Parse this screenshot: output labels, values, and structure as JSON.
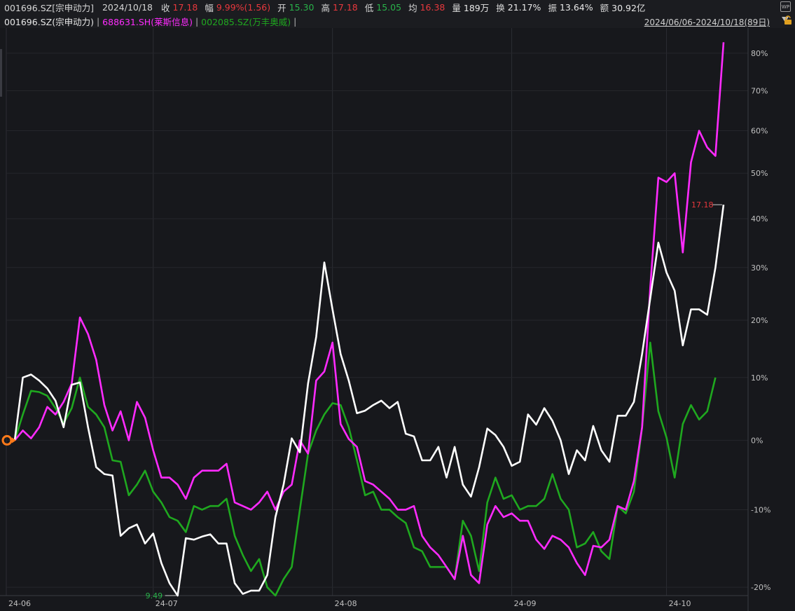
{
  "quote": {
    "code": "001696.SZ[宗申动力]",
    "date": "2024/10/18",
    "close_label": "收",
    "close_value": "17.18",
    "change_label": "幅",
    "change_value": "9.99%(1.56)",
    "open_label": "开",
    "open_value": "15.30",
    "high_label": "高",
    "high_value": "17.18",
    "low_label": "低",
    "low_value": "15.05",
    "avg_label": "均",
    "avg_value": "16.38",
    "volume_label": "量",
    "volume_value": "189万",
    "turnover_label": "换",
    "turnover_value": "21.17%",
    "amplitude_label": "振",
    "amplitude_value": "13.64%",
    "amount_label": "额",
    "amount_value": "30.92亿"
  },
  "compare": {
    "main": "001696.SZ(宗申动力)",
    "second": "688631.SH(莱斯信息)",
    "third": "002085.SZ(万丰奥威)",
    "separator": "|"
  },
  "range": "2024/06/06-2024/10/18(89日)",
  "colors": {
    "background": "#17181c",
    "main_series": "#ffffff",
    "second_series": "#ff2bff",
    "third_series": "#1fa81f",
    "up": "#e8383d",
    "down": "#29b34a"
  },
  "chart_data": {
    "type": "line",
    "x_tick_labels": [
      "24-06",
      "24-07",
      "24-08",
      "24-09",
      "24-10"
    ],
    "x_tick_index": [
      0,
      17,
      39,
      61,
      80
    ],
    "y_tick_labels": [
      "80%",
      "70%",
      "60%",
      "50%",
      "40%",
      "30%",
      "20%",
      "10%",
      "0%",
      "-10%",
      "-20%"
    ],
    "y_tick_values": [
      80,
      70,
      60,
      50,
      40,
      30,
      20,
      10,
      0,
      -10,
      -20
    ],
    "y_scale": "log",
    "ylim": [
      -21,
      86
    ],
    "annotation_low": "9.49",
    "annotation_close": "17.18",
    "series": [
      {
        "name": "001696.SZ(宗申动力)",
        "color": "#ffffff",
        "values": [
          0,
          10,
          10.5,
          9.5,
          8.2,
          6.2,
          2,
          8.8,
          9.2,
          2,
          -4,
          -5,
          -5.2,
          -13.5,
          -12.5,
          -12,
          -14.5,
          -13.2,
          -17,
          -19.5,
          -21,
          -13.8,
          -14,
          -13.6,
          -13.3,
          -14.5,
          -14.5,
          -19.5,
          -20.8,
          -20.4,
          -20.4,
          -18.5,
          -11,
          -6.5,
          0.3,
          -1.8,
          9,
          17,
          31,
          22,
          14,
          9.5,
          4.2,
          4.6,
          5.5,
          6.2,
          5,
          6,
          1,
          0.6,
          -3,
          -3,
          -1,
          -5.5,
          -1,
          -6.5,
          -8.2,
          -4,
          1.8,
          0.8,
          -1,
          -3.8,
          -3.2,
          4,
          2.4,
          5,
          3,
          0,
          -5,
          -1.5,
          -3,
          2.2,
          -1.5,
          -3.2,
          3.8,
          3.8,
          6,
          14,
          24,
          35,
          29,
          25.5,
          15.5,
          22,
          22,
          21,
          30,
          43
        ]
      },
      {
        "name": "688631.SH(莱斯信息)",
        "color": "#ff2bff",
        "values": [
          0,
          1.5,
          0.3,
          2,
          5.2,
          4,
          6,
          9,
          20.5,
          17.5,
          13,
          5.5,
          1.5,
          4.5,
          0,
          6,
          3.5,
          -1.5,
          -5.5,
          -5.5,
          -6.5,
          -8.5,
          -5.5,
          -4.5,
          -4.5,
          -4.5,
          -3.5,
          -9,
          -9.5,
          -10,
          -9,
          -7.5,
          -10,
          -7.5,
          -6.5,
          0,
          -2,
          9.5,
          11,
          16,
          2.5,
          0.2,
          -1,
          -6,
          -6.5,
          -7.5,
          -8.5,
          -10,
          -10,
          -9.5,
          -13.5,
          -15,
          -16,
          -17.5,
          -19,
          -13.5,
          -18.5,
          -19.5,
          -12,
          -9.5,
          -11,
          -10.5,
          -11.5,
          -11.5,
          -14,
          -15.2,
          -13.5,
          -14,
          -15,
          -17,
          -18.5,
          -14.8,
          -15,
          -14,
          -9.5,
          -10,
          -6,
          2,
          26,
          49,
          48,
          50,
          33,
          52.5,
          60,
          56,
          54,
          83
        ]
      },
      {
        "name": "002085.SZ(万丰奥威)",
        "color": "#1fa81f",
        "values": [
          0,
          4,
          7.8,
          7.6,
          7,
          5,
          2.6,
          5,
          10,
          5.2,
          4,
          2,
          -3,
          -3.2,
          -8,
          -6.5,
          -4.5,
          -7.5,
          -9,
          -11,
          -11.5,
          -13,
          -9.5,
          -10,
          -9.5,
          -9.5,
          -8.5,
          -13.5,
          -16,
          -18,
          -16.5,
          -20,
          -21,
          -19,
          -17.5,
          -10,
          -2,
          1.5,
          4,
          5.8,
          5.5,
          2,
          -3,
          -8,
          -7.5,
          -10,
          -10,
          -11,
          -11.8,
          -15,
          -15.5,
          -17.5,
          -17.5,
          -17.5,
          -19,
          -11.5,
          -13.5,
          -18,
          -9,
          -5.5,
          -8.5,
          -8,
          -10,
          -9.5,
          -9.5,
          -8.5,
          -5,
          -8.5,
          -10,
          -15,
          -14.5,
          -13,
          -15.5,
          -16.5,
          -9.5,
          -10.5,
          -7.5,
          2,
          16,
          4.5,
          0.4,
          -5.5,
          2.5,
          5.5,
          3.2,
          4.5,
          10
        ]
      }
    ]
  }
}
